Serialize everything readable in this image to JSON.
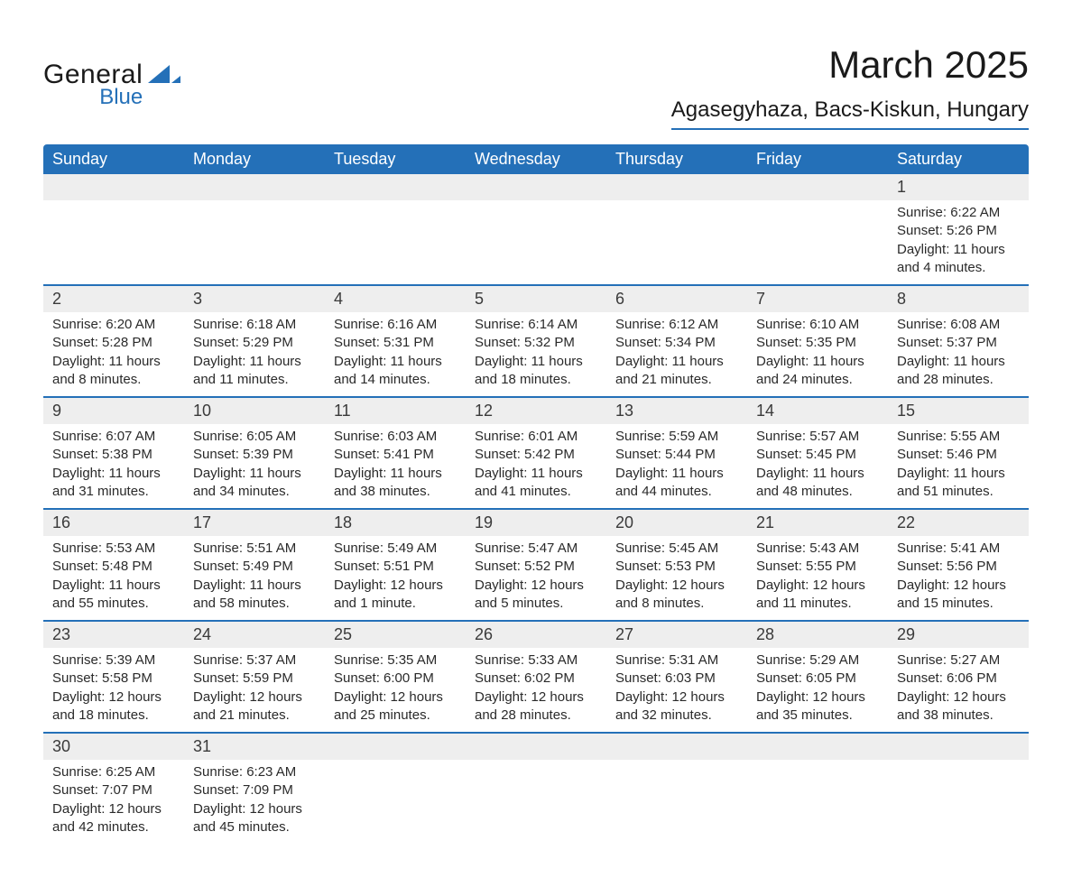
{
  "logo": {
    "general": "General",
    "blue": "Blue",
    "mark_color": "#2470b8"
  },
  "header": {
    "title": "March 2025",
    "location": "Agasegyhaza, Bacs-Kiskun, Hungary"
  },
  "styling": {
    "header_bg": "#2470b8",
    "header_fg": "#ffffff",
    "row_separator": "#2470b8",
    "daynum_bg": "#eeeeee",
    "body_bg": "#ffffff",
    "text_color": "#2a2a2a",
    "title_fontsize": 42,
    "location_fontsize": 24,
    "dayheader_fontsize": 18,
    "cell_fontsize": 15
  },
  "calendar": {
    "day_headers": [
      "Sunday",
      "Monday",
      "Tuesday",
      "Wednesday",
      "Thursday",
      "Friday",
      "Saturday"
    ],
    "weeks": [
      [
        null,
        null,
        null,
        null,
        null,
        null,
        {
          "n": "1",
          "sunrise": "6:22 AM",
          "sunset": "5:26 PM",
          "daylight": "11 hours and 4 minutes."
        }
      ],
      [
        {
          "n": "2",
          "sunrise": "6:20 AM",
          "sunset": "5:28 PM",
          "daylight": "11 hours and 8 minutes."
        },
        {
          "n": "3",
          "sunrise": "6:18 AM",
          "sunset": "5:29 PM",
          "daylight": "11 hours and 11 minutes."
        },
        {
          "n": "4",
          "sunrise": "6:16 AM",
          "sunset": "5:31 PM",
          "daylight": "11 hours and 14 minutes."
        },
        {
          "n": "5",
          "sunrise": "6:14 AM",
          "sunset": "5:32 PM",
          "daylight": "11 hours and 18 minutes."
        },
        {
          "n": "6",
          "sunrise": "6:12 AM",
          "sunset": "5:34 PM",
          "daylight": "11 hours and 21 minutes."
        },
        {
          "n": "7",
          "sunrise": "6:10 AM",
          "sunset": "5:35 PM",
          "daylight": "11 hours and 24 minutes."
        },
        {
          "n": "8",
          "sunrise": "6:08 AM",
          "sunset": "5:37 PM",
          "daylight": "11 hours and 28 minutes."
        }
      ],
      [
        {
          "n": "9",
          "sunrise": "6:07 AM",
          "sunset": "5:38 PM",
          "daylight": "11 hours and 31 minutes."
        },
        {
          "n": "10",
          "sunrise": "6:05 AM",
          "sunset": "5:39 PM",
          "daylight": "11 hours and 34 minutes."
        },
        {
          "n": "11",
          "sunrise": "6:03 AM",
          "sunset": "5:41 PM",
          "daylight": "11 hours and 38 minutes."
        },
        {
          "n": "12",
          "sunrise": "6:01 AM",
          "sunset": "5:42 PM",
          "daylight": "11 hours and 41 minutes."
        },
        {
          "n": "13",
          "sunrise": "5:59 AM",
          "sunset": "5:44 PM",
          "daylight": "11 hours and 44 minutes."
        },
        {
          "n": "14",
          "sunrise": "5:57 AM",
          "sunset": "5:45 PM",
          "daylight": "11 hours and 48 minutes."
        },
        {
          "n": "15",
          "sunrise": "5:55 AM",
          "sunset": "5:46 PM",
          "daylight": "11 hours and 51 minutes."
        }
      ],
      [
        {
          "n": "16",
          "sunrise": "5:53 AM",
          "sunset": "5:48 PM",
          "daylight": "11 hours and 55 minutes."
        },
        {
          "n": "17",
          "sunrise": "5:51 AM",
          "sunset": "5:49 PM",
          "daylight": "11 hours and 58 minutes."
        },
        {
          "n": "18",
          "sunrise": "5:49 AM",
          "sunset": "5:51 PM",
          "daylight": "12 hours and 1 minute."
        },
        {
          "n": "19",
          "sunrise": "5:47 AM",
          "sunset": "5:52 PM",
          "daylight": "12 hours and 5 minutes."
        },
        {
          "n": "20",
          "sunrise": "5:45 AM",
          "sunset": "5:53 PM",
          "daylight": "12 hours and 8 minutes."
        },
        {
          "n": "21",
          "sunrise": "5:43 AM",
          "sunset": "5:55 PM",
          "daylight": "12 hours and 11 minutes."
        },
        {
          "n": "22",
          "sunrise": "5:41 AM",
          "sunset": "5:56 PM",
          "daylight": "12 hours and 15 minutes."
        }
      ],
      [
        {
          "n": "23",
          "sunrise": "5:39 AM",
          "sunset": "5:58 PM",
          "daylight": "12 hours and 18 minutes."
        },
        {
          "n": "24",
          "sunrise": "5:37 AM",
          "sunset": "5:59 PM",
          "daylight": "12 hours and 21 minutes."
        },
        {
          "n": "25",
          "sunrise": "5:35 AM",
          "sunset": "6:00 PM",
          "daylight": "12 hours and 25 minutes."
        },
        {
          "n": "26",
          "sunrise": "5:33 AM",
          "sunset": "6:02 PM",
          "daylight": "12 hours and 28 minutes."
        },
        {
          "n": "27",
          "sunrise": "5:31 AM",
          "sunset": "6:03 PM",
          "daylight": "12 hours and 32 minutes."
        },
        {
          "n": "28",
          "sunrise": "5:29 AM",
          "sunset": "6:05 PM",
          "daylight": "12 hours and 35 minutes."
        },
        {
          "n": "29",
          "sunrise": "5:27 AM",
          "sunset": "6:06 PM",
          "daylight": "12 hours and 38 minutes."
        }
      ],
      [
        {
          "n": "30",
          "sunrise": "6:25 AM",
          "sunset": "7:07 PM",
          "daylight": "12 hours and 42 minutes."
        },
        {
          "n": "31",
          "sunrise": "6:23 AM",
          "sunset": "7:09 PM",
          "daylight": "12 hours and 45 minutes."
        },
        null,
        null,
        null,
        null,
        null
      ]
    ],
    "labels": {
      "sunrise_prefix": "Sunrise: ",
      "sunset_prefix": "Sunset: ",
      "daylight_prefix": "Daylight: "
    }
  }
}
